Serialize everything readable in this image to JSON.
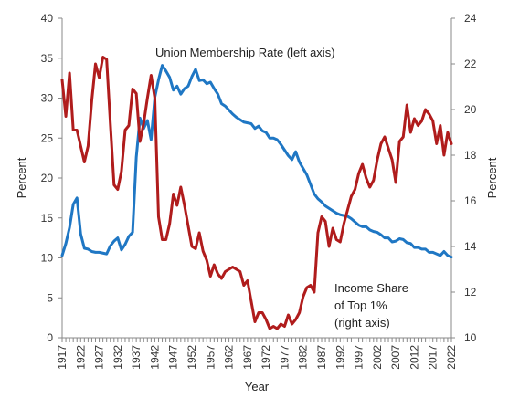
{
  "chart_data": {
    "type": "line",
    "xlabel": "Year",
    "ylabel_left": "Percent",
    "ylabel_right": "Percent",
    "ylim_left": [
      0,
      40
    ],
    "ylim_right": [
      10,
      24
    ],
    "yticks_left": [
      0,
      5,
      10,
      15,
      20,
      25,
      30,
      35,
      40
    ],
    "yticks_right": [
      10,
      12,
      14,
      16,
      18,
      20,
      22,
      24
    ],
    "xlim": [
      1917,
      2022
    ],
    "xtick_labels": [
      "1917",
      "1922",
      "1927",
      "1932",
      "1937",
      "1942",
      "1947",
      "1952",
      "1957",
      "1962",
      "1967",
      "1972",
      "1977",
      "1982",
      "1987",
      "1992",
      "1997",
      "2002",
      "2007",
      "2012",
      "2017",
      "2022"
    ],
    "annotations": [
      "Union Membership Rate (left axis)",
      "Income Share",
      "of Top 1%",
      "(right axis)"
    ],
    "series": [
      {
        "name": "Union Membership Rate (left axis)",
        "axis": "left",
        "color": "#1f77c4",
        "x": [
          1917,
          1918,
          1919,
          1920,
          1921,
          1922,
          1923,
          1924,
          1925,
          1926,
          1927,
          1928,
          1929,
          1930,
          1931,
          1932,
          1933,
          1934,
          1935,
          1936,
          1937,
          1938,
          1939,
          1940,
          1941,
          1942,
          1943,
          1944,
          1945,
          1946,
          1947,
          1948,
          1949,
          1950,
          1951,
          1952,
          1953,
          1954,
          1955,
          1956,
          1957,
          1958,
          1959,
          1960,
          1961,
          1962,
          1963,
          1964,
          1965,
          1966,
          1967,
          1968,
          1969,
          1970,
          1971,
          1972,
          1973,
          1974,
          1975,
          1976,
          1977,
          1978,
          1979,
          1980,
          1981,
          1982,
          1983,
          1984,
          1985,
          1986,
          1987,
          1988,
          1989,
          1990,
          1991,
          1992,
          1993,
          1994,
          1995,
          1996,
          1997,
          1998,
          1999,
          2000,
          2001,
          2002,
          2003,
          2004,
          2005,
          2006,
          2007,
          2008,
          2009,
          2010,
          2011,
          2012,
          2013,
          2014,
          2015,
          2016,
          2017,
          2018,
          2019,
          2020,
          2021,
          2022
        ],
        "values": [
          10.3,
          11.8,
          13.8,
          16.7,
          17.5,
          13.0,
          11.2,
          11.1,
          10.8,
          10.7,
          10.7,
          10.6,
          10.5,
          11.5,
          12.1,
          12.5,
          11.0,
          11.7,
          12.7,
          13.2,
          22.6,
          27.5,
          26.2,
          27.2,
          24.8,
          30.1,
          32.3,
          34.1,
          33.4,
          32.6,
          31.0,
          31.5,
          30.5,
          31.2,
          31.5,
          32.7,
          33.6,
          32.2,
          32.3,
          31.8,
          32.0,
          31.2,
          30.5,
          29.3,
          29.0,
          28.5,
          28.0,
          27.6,
          27.3,
          27.0,
          26.9,
          26.8,
          26.2,
          26.5,
          25.9,
          25.7,
          25.0,
          25.0,
          24.8,
          24.2,
          23.5,
          22.8,
          22.3,
          23.3,
          22.0,
          21.2,
          20.4,
          19.2,
          18.0,
          17.4,
          17.0,
          16.5,
          16.2,
          15.9,
          15.6,
          15.4,
          15.3,
          15.2,
          14.9,
          14.5,
          14.1,
          13.9,
          13.9,
          13.5,
          13.3,
          13.2,
          12.9,
          12.5,
          12.5,
          12.0,
          12.1,
          12.4,
          12.3,
          11.9,
          11.8,
          11.3,
          11.3,
          11.1,
          11.1,
          10.7,
          10.7,
          10.5,
          10.3,
          10.8,
          10.3,
          10.1
        ]
      },
      {
        "name": "Income Share of Top 1% (right axis)",
        "axis": "right",
        "color": "#b01c1c",
        "x": [
          1917,
          1918,
          1919,
          1920,
          1921,
          1922,
          1923,
          1924,
          1925,
          1926,
          1927,
          1928,
          1929,
          1930,
          1931,
          1932,
          1933,
          1934,
          1935,
          1936,
          1937,
          1938,
          1939,
          1940,
          1941,
          1942,
          1943,
          1944,
          1945,
          1946,
          1947,
          1948,
          1949,
          1950,
          1951,
          1952,
          1953,
          1954,
          1955,
          1956,
          1957,
          1958,
          1959,
          1960,
          1961,
          1962,
          1963,
          1964,
          1965,
          1966,
          1967,
          1968,
          1969,
          1970,
          1971,
          1972,
          1973,
          1974,
          1975,
          1976,
          1977,
          1978,
          1979,
          1980,
          1981,
          1982,
          1983,
          1984,
          1985,
          1986,
          1987,
          1988,
          1989,
          1990,
          1991,
          1992,
          1993,
          1994,
          1995,
          1996,
          1997,
          1998,
          1999,
          2000,
          2001,
          2002,
          2003,
          2004,
          2005,
          2006,
          2007,
          2008,
          2009,
          2010,
          2011,
          2012,
          2013,
          2014,
          2015,
          2016,
          2017,
          2018,
          2019,
          2020,
          2021,
          2022
        ],
        "values": [
          21.3,
          19.7,
          21.6,
          19.1,
          19.1,
          18.4,
          17.7,
          18.4,
          20.4,
          22.0,
          21.4,
          22.3,
          22.2,
          19.4,
          16.7,
          16.5,
          17.3,
          19.1,
          19.3,
          20.9,
          20.7,
          18.6,
          19.4,
          20.5,
          21.5,
          20.5,
          15.3,
          14.3,
          14.3,
          15.0,
          16.3,
          15.8,
          16.6,
          15.8,
          14.9,
          14.0,
          13.9,
          14.6,
          13.8,
          13.4,
          12.7,
          13.2,
          12.8,
          12.6,
          12.9,
          13.0,
          13.1,
          13.0,
          12.9,
          12.3,
          12.5,
          11.6,
          10.7,
          11.1,
          11.1,
          10.8,
          10.4,
          10.5,
          10.4,
          10.6,
          10.5,
          11.0,
          10.6,
          10.8,
          11.1,
          11.8,
          12.2,
          12.3,
          12.0,
          14.6,
          15.3,
          15.1,
          14.0,
          14.8,
          14.3,
          14.2,
          15.0,
          15.6,
          16.2,
          16.5,
          17.2,
          17.6,
          17.0,
          16.6,
          16.9,
          17.8,
          18.5,
          18.8,
          18.3,
          17.8,
          16.8,
          18.6,
          18.8,
          20.2,
          19.0,
          19.6,
          19.3,
          19.5,
          20.0,
          19.8,
          19.5,
          18.5,
          19.3,
          18.0,
          19.0,
          18.5
        ]
      }
    ]
  }
}
